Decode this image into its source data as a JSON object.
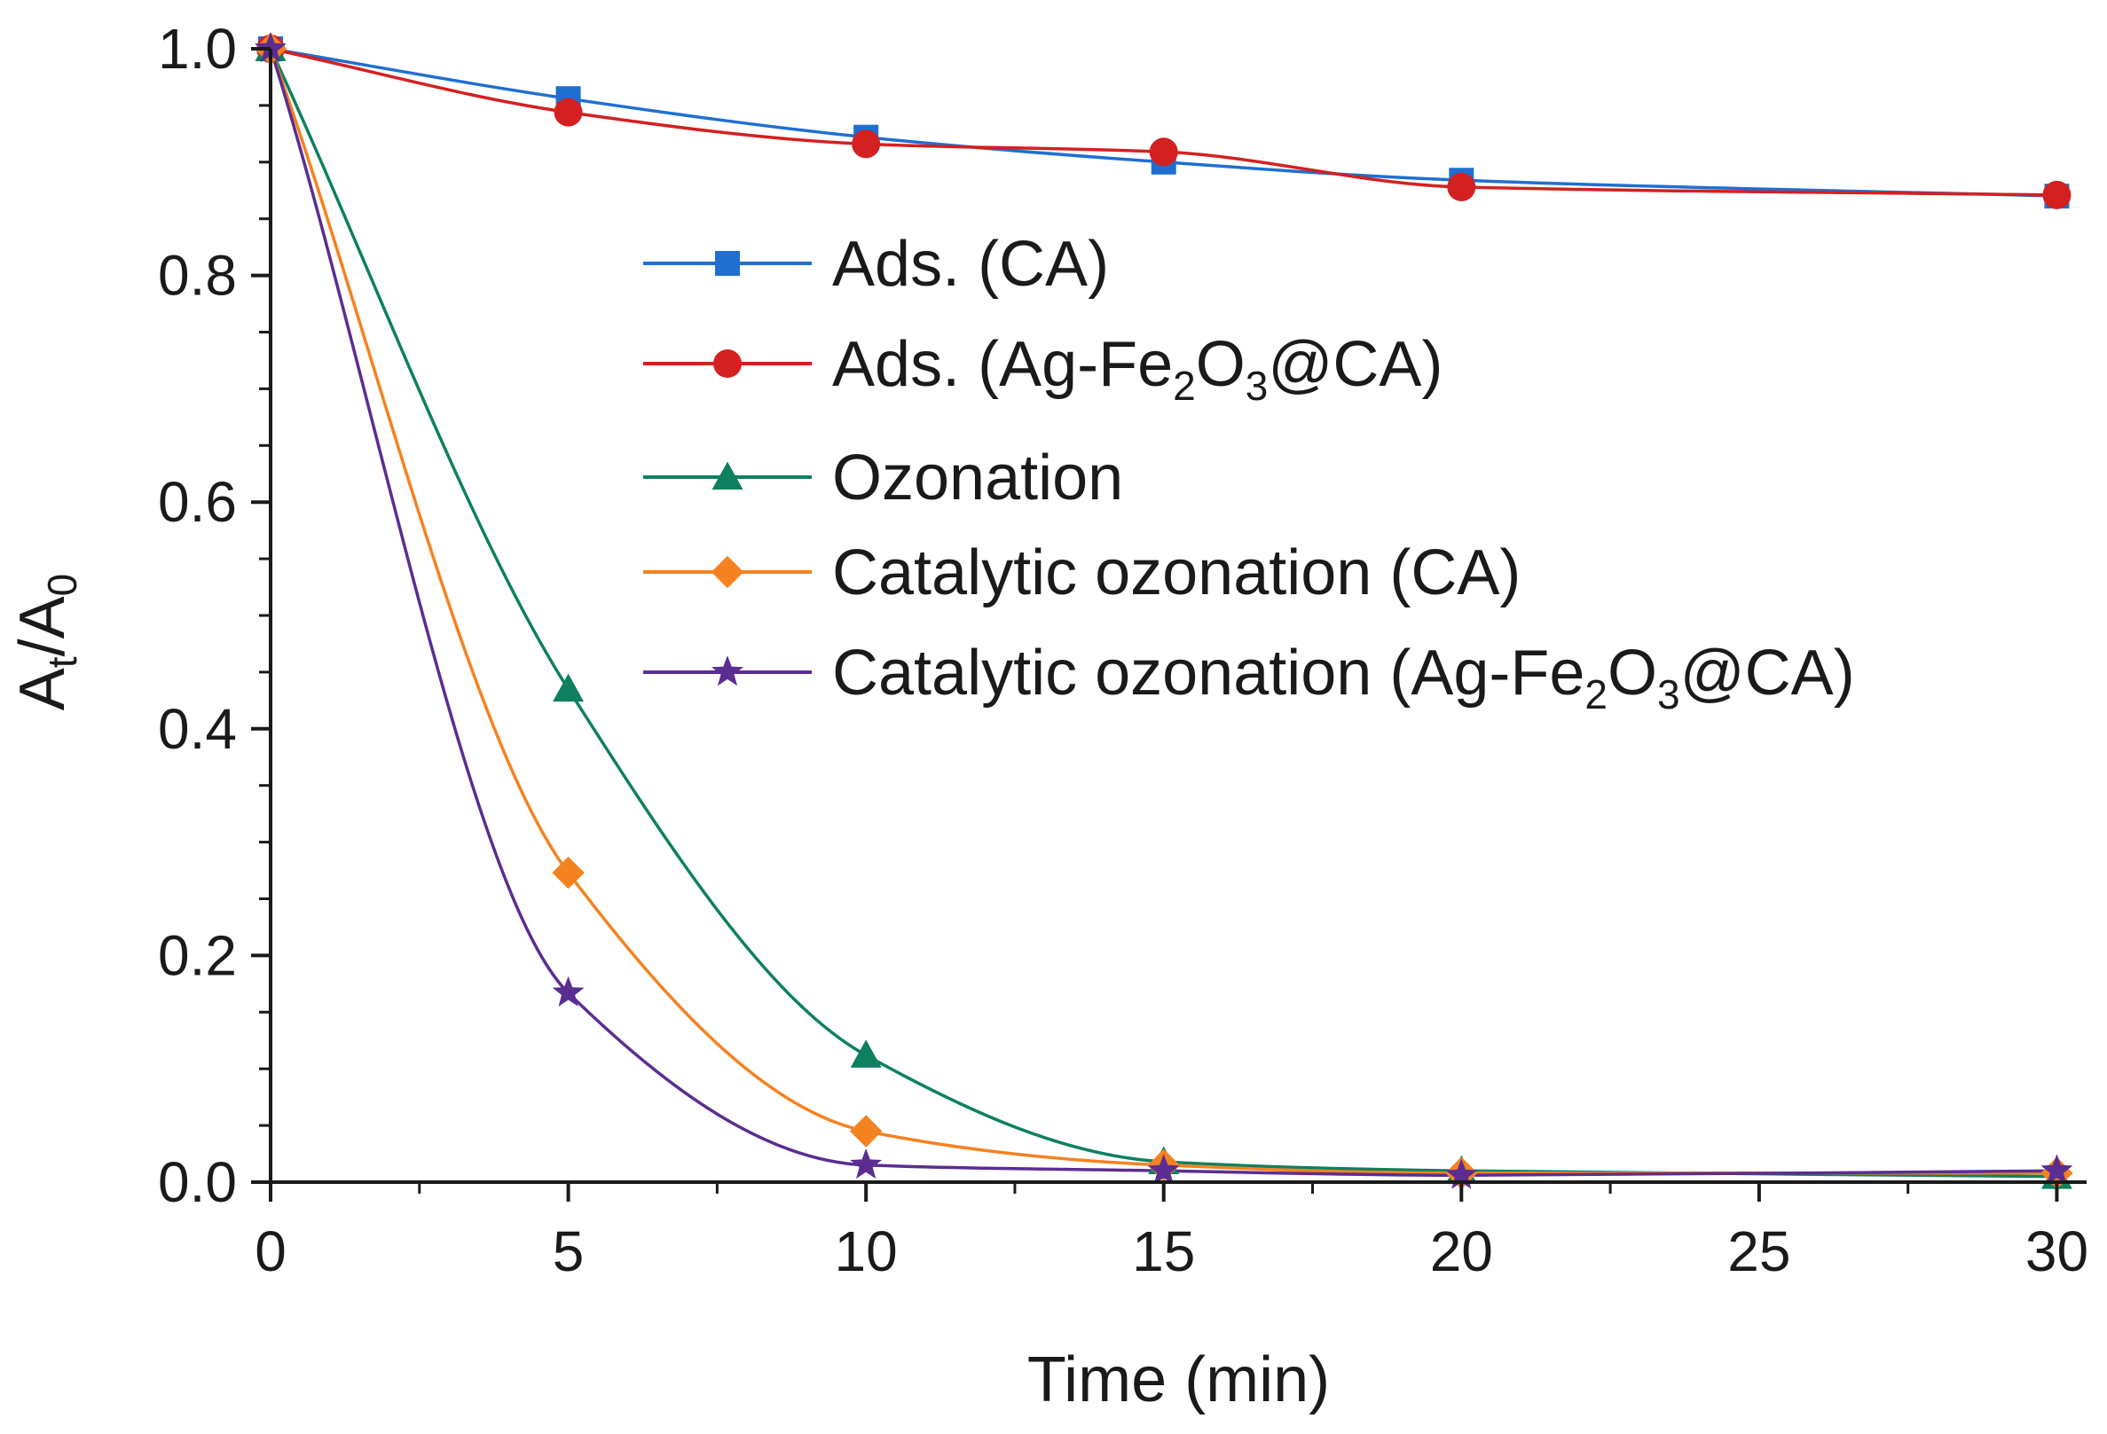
{
  "chart_data": {
    "type": "line",
    "xlabel": "Time (min)",
    "ylabel": {
      "main": "A",
      "sub1": "t",
      "mid": "/A",
      "sub2": "0"
    },
    "xlim": [
      0,
      30.5
    ],
    "ylim": [
      0,
      1.0
    ],
    "xticks": [
      0,
      5,
      10,
      15,
      20,
      25,
      30
    ],
    "yticks": [
      0.0,
      0.2,
      0.4,
      0.6,
      0.8,
      1.0
    ],
    "xtick_labels": [
      "0",
      "5",
      "10",
      "15",
      "20",
      "25",
      "30"
    ],
    "ytick_labels": [
      "0.0",
      "0.2",
      "0.4",
      "0.6",
      "0.8",
      "1.0"
    ],
    "grid": false,
    "legend_position": "upper-right",
    "series": [
      {
        "id": "ads-ca",
        "legend": {
          "pre": "Ads. (CA)",
          "sub1": "",
          "mid": "",
          "sub2": "",
          "post": ""
        },
        "color": "#1f6fd1",
        "marker": "square",
        "x": [
          0,
          5,
          10,
          15,
          20,
          30
        ],
        "y": [
          1.0,
          0.956,
          0.922,
          0.9,
          0.884,
          0.87
        ]
      },
      {
        "id": "ads-agfe",
        "legend": {
          "pre": "Ads. (Ag-Fe",
          "sub1": "2",
          "mid": "O",
          "sub2": "3",
          "post": "@CA)"
        },
        "color": "#d42020",
        "marker": "circle",
        "x": [
          0,
          5,
          10,
          15,
          20,
          30
        ],
        "y": [
          1.0,
          0.944,
          0.916,
          0.909,
          0.878,
          0.871
        ]
      },
      {
        "id": "ozonation",
        "legend": {
          "pre": "Ozonation",
          "sub1": "",
          "mid": "",
          "sub2": "",
          "post": ""
        },
        "color": "#0e8060",
        "marker": "triangle",
        "x": [
          0,
          5,
          10,
          15,
          20,
          30
        ],
        "y": [
          1.0,
          0.435,
          0.112,
          0.018,
          0.01,
          0.005
        ]
      },
      {
        "id": "cat-oz-ca",
        "legend": {
          "pre": "Catalytic ozonation (CA)",
          "sub1": "",
          "mid": "",
          "sub2": "",
          "post": ""
        },
        "color": "#f58220",
        "marker": "diamond",
        "x": [
          0,
          5,
          10,
          15,
          20,
          30
        ],
        "y": [
          1.0,
          0.273,
          0.045,
          0.015,
          0.008,
          0.008
        ]
      },
      {
        "id": "cat-oz-agfe",
        "legend": {
          "pre": "Catalytic ozonation (Ag-Fe",
          "sub1": "2",
          "mid": "O",
          "sub2": "3",
          "post": "@CA)"
        },
        "color": "#5b2d91",
        "marker": "star",
        "x": [
          0,
          5,
          10,
          15,
          20,
          30
        ],
        "y": [
          1.0,
          0.167,
          0.015,
          0.01,
          0.006,
          0.01
        ]
      }
    ]
  }
}
